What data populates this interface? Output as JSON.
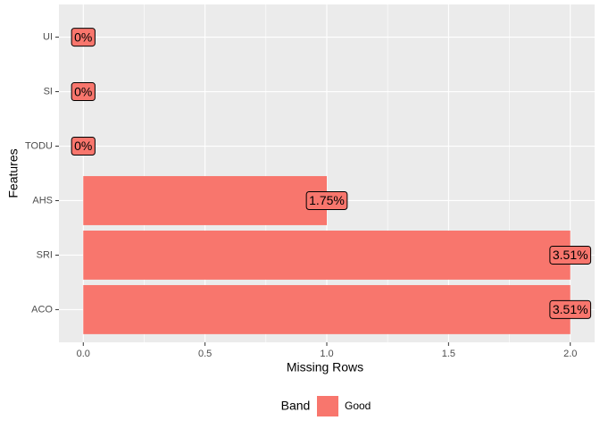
{
  "chart_data": {
    "type": "bar",
    "orientation": "horizontal",
    "categories": [
      "ACO",
      "SRI",
      "AHS",
      "TODU",
      "SI",
      "UI"
    ],
    "values": [
      2,
      2,
      1,
      0,
      0,
      0
    ],
    "data_labels": [
      {
        "value": 3.51,
        "label": "3.51%"
      },
      {
        "value": 3.51,
        "label": "3.51%"
      },
      {
        "value": 1.75,
        "label": "1.75%"
      },
      {
        "value": 0,
        "label": "0%"
      },
      {
        "value": 0,
        "label": "0%"
      },
      {
        "value": 0,
        "label": "0%"
      }
    ],
    "color": "#F8766D",
    "x_label": "Missing Rows",
    "y_label": "Features",
    "xlim": [
      -0.1,
      2.1
    ],
    "xticks": [
      {
        "value": 0,
        "label": "0.0"
      },
      {
        "value": 0.5,
        "label": "0.5"
      },
      {
        "value": 1,
        "label": "1.0"
      },
      {
        "value": 1.5,
        "label": "1.5"
      },
      {
        "value": 2,
        "label": "2.0"
      }
    ],
    "grid": true,
    "legend": {
      "title": "Band",
      "entries": [
        "Good"
      ],
      "position": "bottom"
    }
  }
}
